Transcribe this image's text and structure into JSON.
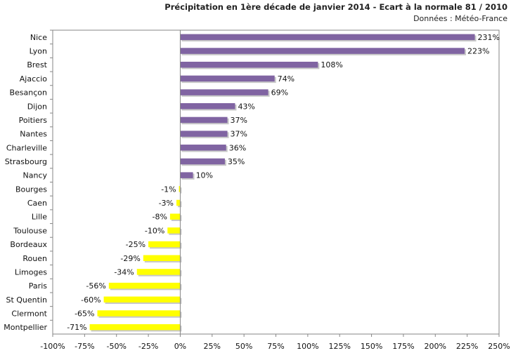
{
  "chart_data": {
    "type": "bar",
    "orientation": "horizontal",
    "title": "Précipitation en 1ère décade de janvier 2014 - Ecart à la normale 81 / 2010",
    "subtitle": "Données : Météo-France",
    "categories": [
      "Nice",
      "Lyon",
      "Brest",
      "Ajaccio",
      "Besançon",
      "Dijon",
      "Poitiers",
      "Nantes",
      "Charleville",
      "Strasbourg",
      "Nancy",
      "Bourges",
      "Caen",
      "Lille",
      "Toulouse",
      "Bordeaux",
      "Rouen",
      "Limoges",
      "Paris",
      "St Quentin",
      "Clermont",
      "Montpellier"
    ],
    "values": [
      231,
      223,
      108,
      74,
      69,
      43,
      37,
      37,
      36,
      35,
      10,
      -1,
      -3,
      -8,
      -10,
      -25,
      -29,
      -34,
      -56,
      -60,
      -65,
      -71
    ],
    "data_labels": [
      "231%",
      "223%",
      "108%",
      "74%",
      "69%",
      "43%",
      "37%",
      "37%",
      "36%",
      "35%",
      "10%",
      "-1%",
      "-3%",
      "-8%",
      "-10%",
      "-25%",
      "-29%",
      "-34%",
      "-56%",
      "-60%",
      "-65%",
      "-71%"
    ],
    "xlim": [
      -100,
      250
    ],
    "x_ticks": [
      -100,
      -75,
      -50,
      -25,
      0,
      25,
      50,
      75,
      100,
      125,
      150,
      175,
      200,
      225,
      250
    ],
    "x_tick_labels": [
      "-100%",
      "-75%",
      "-50%",
      "-25%",
      "0%",
      "25%",
      "50%",
      "75%",
      "100%",
      "125%",
      "150%",
      "175%",
      "200%",
      "225%",
      "250%"
    ],
    "colors": {
      "positive": "#8064a2",
      "negative": "#ffff00",
      "shadow": "#b0b0b0",
      "axis": "#868686"
    },
    "grid": false,
    "legend": "none"
  }
}
